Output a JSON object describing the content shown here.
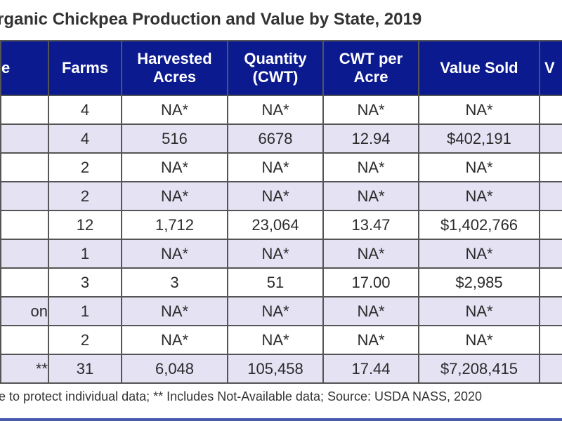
{
  "title": "rganic Chickpea Production and Value by State, 2019",
  "colors": {
    "header_bg": "#0b1a8e",
    "alt_row": "#e4e2f3",
    "accent_line": "#4a58b0"
  },
  "table": {
    "headers": [
      "e",
      "Farms",
      "Harvested\nAcres",
      "Quantity\n(CWT)",
      "CWT per\nAcre",
      "Value Sold",
      "V"
    ],
    "rows": [
      [
        "",
        "4",
        "NA*",
        "NA*",
        "NA*",
        "NA*",
        ""
      ],
      [
        "",
        "4",
        "516",
        "6678",
        "12.94",
        "$402,191",
        ""
      ],
      [
        "",
        "2",
        "NA*",
        "NA*",
        "NA*",
        "NA*",
        ""
      ],
      [
        "",
        "2",
        "NA*",
        "NA*",
        "NA*",
        "NA*",
        ""
      ],
      [
        "",
        "12",
        "1,712",
        "23,064",
        "13.47",
        "$1,402,766",
        ""
      ],
      [
        "",
        "1",
        "NA*",
        "NA*",
        "NA*",
        "NA*",
        ""
      ],
      [
        "",
        "3",
        "3",
        "51",
        "17.00",
        "$2,985",
        ""
      ],
      [
        "on",
        "1",
        "NA*",
        "NA*",
        "NA*",
        "NA*",
        ""
      ],
      [
        "",
        "2",
        "NA*",
        "NA*",
        "NA*",
        "NA*",
        ""
      ],
      [
        "**",
        "31",
        "6,048",
        "105,458",
        "17.44",
        "$7,208,415",
        ""
      ]
    ]
  },
  "footnote": "e to protect individual data;  ** Includes Not-Available data;  Source: USDA NASS, 2020"
}
